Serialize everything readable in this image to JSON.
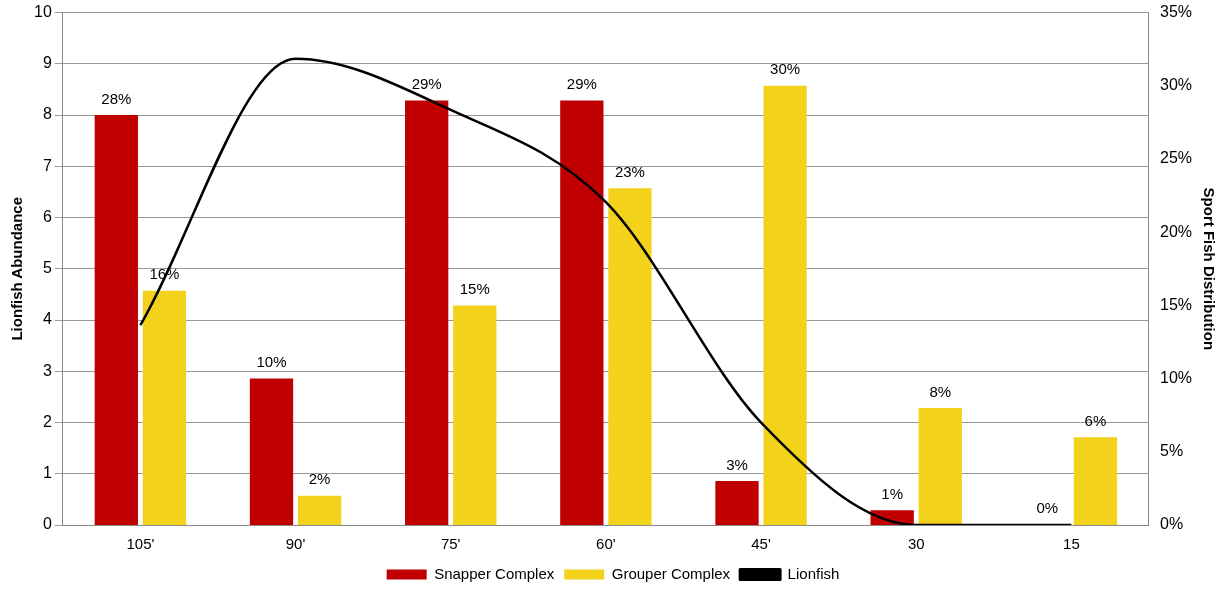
{
  "chart_data": {
    "type": "bar",
    "categories": [
      "105'",
      "90'",
      "75'",
      "60'",
      "45'",
      "30",
      "15"
    ],
    "ylabel": "Lionfish Abundance",
    "y2label": "Sport Fish Distribution",
    "ylim": [
      0,
      10
    ],
    "yticks": [
      0,
      1,
      2,
      3,
      4,
      5,
      6,
      7,
      8,
      9,
      10
    ],
    "y2lim": [
      0,
      35
    ],
    "y2ticks": [
      {
        "value": 0,
        "label": "0%"
      },
      {
        "value": 5,
        "label": "5%"
      },
      {
        "value": 10,
        "label": "10%"
      },
      {
        "value": 15,
        "label": "15%"
      },
      {
        "value": 20,
        "label": "20%"
      },
      {
        "value": 25,
        "label": "25%"
      },
      {
        "value": 30,
        "label": "30%"
      },
      {
        "value": 35,
        "label": "35%"
      }
    ],
    "grid": "y",
    "legend": "bottom",
    "marker": "none",
    "series": [
      {
        "name": "Snapper Complex",
        "axis": "y2",
        "color": "#c00000",
        "values": [
          28,
          10,
          29,
          29,
          3,
          1,
          0
        ],
        "value_labels": [
          "28%",
          "10%",
          "29%",
          "29%",
          "3%",
          "1%",
          "0%"
        ]
      },
      {
        "name": "Grouper Complex",
        "axis": "y2",
        "color": "#f2d21a",
        "values": [
          16,
          2,
          15,
          23,
          30,
          8,
          6
        ],
        "value_labels": [
          "16%",
          "2%",
          "15%",
          "23%",
          "30%",
          "8%",
          "6%"
        ]
      },
      {
        "name": "Lionfish",
        "type": "line",
        "color": "#000000",
        "line_style": "solid",
        "values": [
          3.9,
          9.1,
          8.1,
          6.3,
          2.0,
          0,
          0
        ]
      }
    ]
  }
}
